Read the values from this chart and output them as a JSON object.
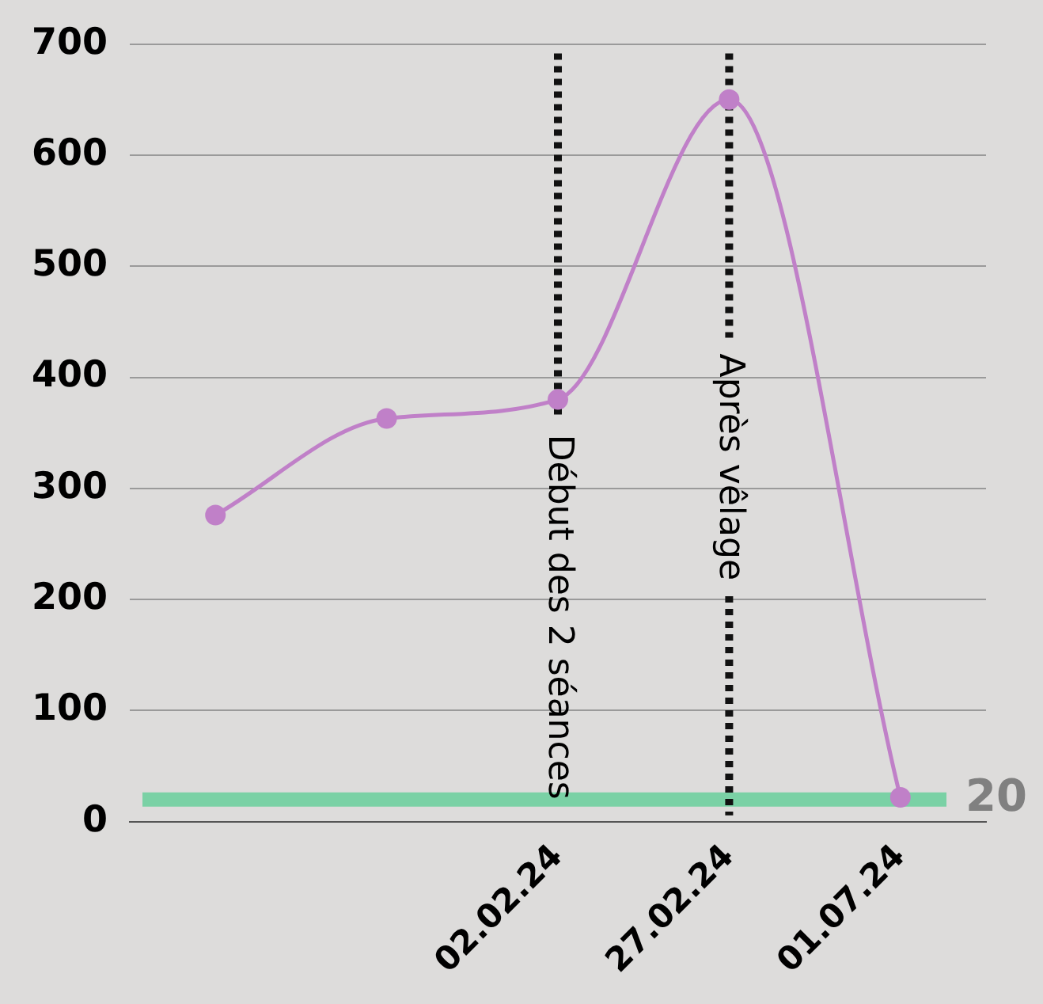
{
  "chart_data": {
    "type": "line",
    "categories": [
      null,
      null,
      "02.02.24",
      "27.02.24",
      "01.07.24"
    ],
    "series": [
      {
        "color": "#c080c8",
        "values": [
          276,
          363,
          380,
          650,
          22
        ]
      }
    ],
    "ylim": [
      0,
      700
    ],
    "yticks": [
      0,
      100,
      200,
      300,
      400,
      500,
      600,
      700
    ],
    "grid": "y",
    "legend": false,
    "marker": "circle",
    "line_style": "solid",
    "ref_lines": [
      {
        "axis": "y",
        "value": 20,
        "label": "20",
        "color": "#6fcf9f",
        "line_style": "solid"
      },
      {
        "axis": "x",
        "value": "02.02.24",
        "label": "Début des 2 séances",
        "color": "#111111",
        "line_style": "dotted"
      },
      {
        "axis": "x",
        "value": "27.02.24",
        "label": "Après vêlage",
        "color": "#111111",
        "line_style": "dotted"
      }
    ]
  }
}
